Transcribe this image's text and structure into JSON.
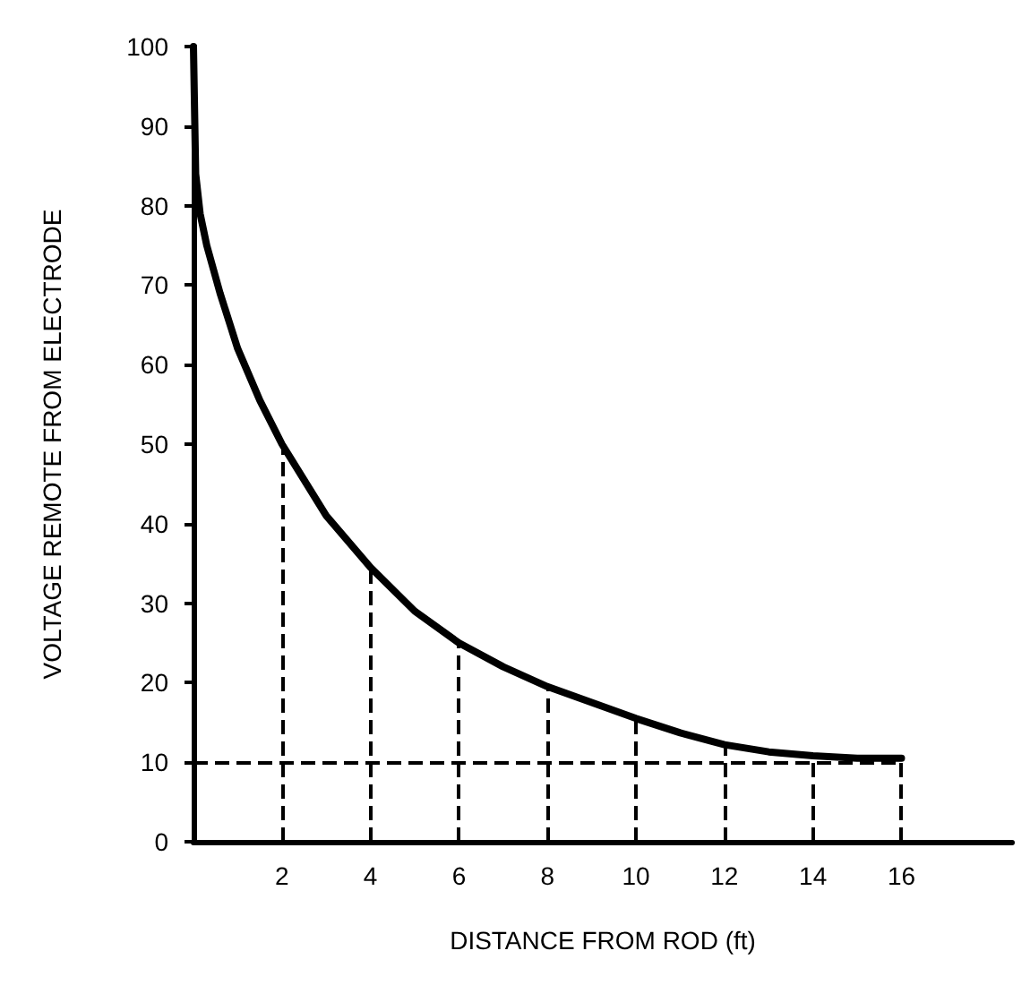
{
  "chart_data": {
    "type": "line",
    "xlabel": "DISTANCE FROM ROD (ft)",
    "ylabel": "VOLTAGE REMOTE FROM ELECTRODE",
    "x": [
      0,
      0.05,
      0.15,
      0.3,
      0.6,
      1,
      1.5,
      2,
      3,
      4,
      5,
      6,
      7,
      8,
      9,
      10,
      11,
      12,
      13,
      14,
      15,
      16
    ],
    "series": [
      {
        "color": "#000000",
        "values": [
          100,
          84,
          79,
          75,
          69,
          62,
          55.5,
          50,
          41,
          34.5,
          29,
          25,
          22,
          19.5,
          17.5,
          15.5,
          13.7,
          12.2,
          11.3,
          10.8,
          10.5,
          10.5
        ]
      }
    ],
    "xlim": [
      0,
      18.5
    ],
    "xticks": [
      2,
      4,
      6,
      8,
      10,
      12,
      14,
      16
    ],
    "ylim": [
      0,
      100
    ],
    "yticks": [
      0,
      10,
      20,
      30,
      40,
      50,
      60,
      70,
      80,
      90,
      100
    ],
    "ref_lines": [
      {
        "axis": "x",
        "value": 2,
        "line_style": "dashed"
      },
      {
        "axis": "x",
        "value": 4,
        "line_style": "dashed"
      },
      {
        "axis": "x",
        "value": 6,
        "line_style": "dashed"
      },
      {
        "axis": "x",
        "value": 8,
        "line_style": "dashed"
      },
      {
        "axis": "x",
        "value": 10,
        "line_style": "dashed"
      },
      {
        "axis": "x",
        "value": 12,
        "line_style": "dashed"
      },
      {
        "axis": "x",
        "value": 14,
        "line_style": "dashed"
      },
      {
        "axis": "x",
        "value": 16,
        "line_style": "dashed"
      },
      {
        "axis": "y",
        "value": 10,
        "line_style": "dashed"
      }
    ],
    "grid": false,
    "marker": "none",
    "line_style": "solid"
  }
}
